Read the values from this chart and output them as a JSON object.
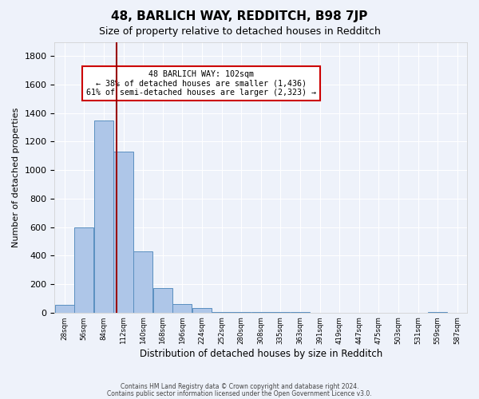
{
  "title": "48, BARLICH WAY, REDDITCH, B98 7JP",
  "subtitle": "Size of property relative to detached houses in Redditch",
  "xlabel": "Distribution of detached houses by size in Redditch",
  "ylabel": "Number of detached properties",
  "footer_line1": "Contains HM Land Registry data © Crown copyright and database right 2024.",
  "footer_line2": "Contains public sector information licensed under the Open Government Licence v3.0.",
  "bin_edges": [
    14,
    42,
    70,
    98,
    126,
    154,
    182,
    210,
    238,
    266,
    294,
    322,
    350,
    378,
    406,
    434,
    462,
    490,
    518,
    546,
    574,
    602
  ],
  "bin_labels": [
    "28sqm",
    "56sqm",
    "84sqm",
    "112sqm",
    "140sqm",
    "168sqm",
    "196sqm",
    "224sqm",
    "252sqm",
    "280sqm",
    "308sqm",
    "335sqm",
    "363sqm",
    "391sqm",
    "419sqm",
    "447sqm",
    "475sqm",
    "503sqm",
    "531sqm",
    "559sqm",
    "587sqm"
  ],
  "counts": [
    55,
    598,
    1350,
    1130,
    430,
    170,
    60,
    30,
    5,
    5,
    5,
    5,
    5,
    0,
    0,
    0,
    0,
    0,
    0,
    5,
    0
  ],
  "bar_color": "#aec6e8",
  "bar_edge_color": "#5a8fc0",
  "vline_x": 102,
  "vline_color": "#990000",
  "annotation_title": "48 BARLICH WAY: 102sqm",
  "annotation_line2": "← 38% of detached houses are smaller (1,436)",
  "annotation_line3": "61% of semi-detached houses are larger (2,323) →",
  "annotation_box_color": "#ffffff",
  "annotation_box_edge_color": "#cc0000",
  "ylim": [
    0,
    1900
  ],
  "yticks": [
    0,
    200,
    400,
    600,
    800,
    1000,
    1200,
    1400,
    1600,
    1800
  ],
  "background_color": "#eef2fa",
  "grid_color": "#ffffff"
}
